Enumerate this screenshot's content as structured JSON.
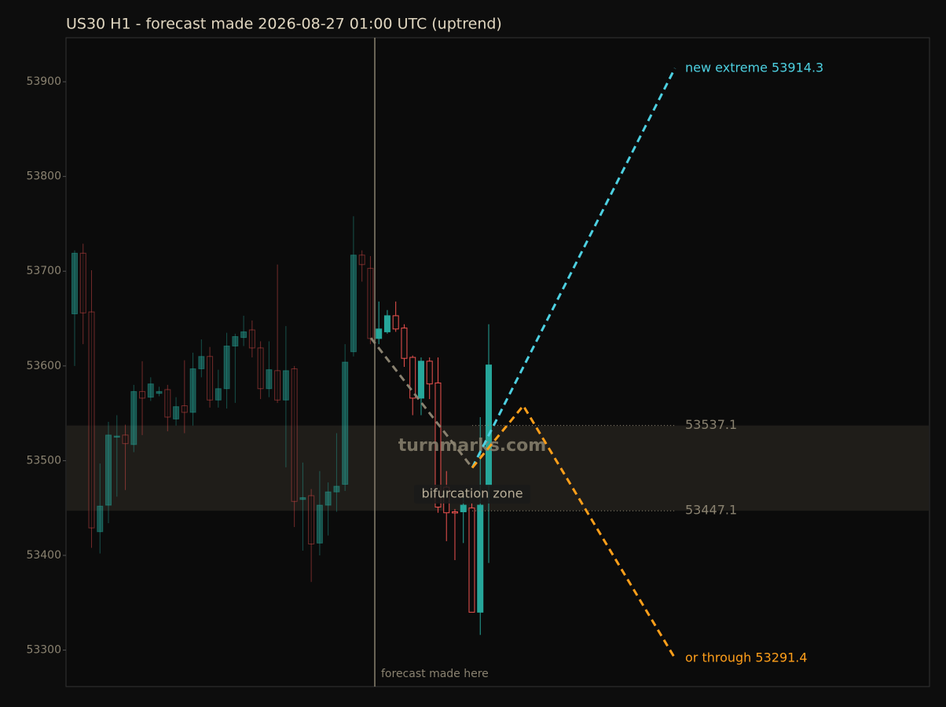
{
  "chart_data": {
    "type": "candlestick",
    "title": "US30 H1 - forecast made 2026-08-27 01:00 UTC (uptrend)",
    "ylim": [
      53261.5,
      53946.5
    ],
    "yticks": [
      53300,
      53400,
      53500,
      53600,
      53700,
      53800,
      53900
    ],
    "up_color": "#26a69a",
    "down_color": "#ef5350",
    "open": [
      53655,
      53719,
      53657,
      53425,
      53453,
      53525,
      53527,
      53517,
      53573,
      53567,
      53571,
      53575,
      53544,
      53558,
      53551,
      53597,
      53610,
      53564,
      53576,
      53621,
      53630,
      53638,
      53619,
      53576,
      53595,
      53564,
      53597,
      53459,
      53463,
      53413,
      53453,
      53467,
      53475,
      53615,
      53717,
      53703,
      53629,
      53636,
      53653,
      53640,
      53609,
      53566,
      53605,
      53582,
      53472,
      53446,
      53446,
      53450,
      53340,
      53474
    ],
    "high": [
      53722,
      53729,
      53701,
      53497,
      53541,
      53548,
      53538,
      53580,
      53605,
      53588,
      53578,
      53580,
      53567,
      53606,
      53614,
      53628,
      53620,
      53596,
      53635,
      53634,
      53653,
      53648,
      53626,
      53626,
      53707,
      53642,
      53600,
      53498,
      53470,
      53489,
      53477,
      53529,
      53623,
      53758,
      53722,
      53716,
      53668,
      53659,
      53668,
      53644,
      53611,
      53609,
      53609,
      53609,
      53489,
      53449,
      53463,
      53455,
      53546,
      53644
    ],
    "low": [
      53600,
      53623,
      53408,
      53402,
      53434,
      53462,
      53469,
      53509,
      53527,
      53563,
      53568,
      53531,
      53537,
      53529,
      53537,
      53588,
      53556,
      53556,
      53555,
      53561,
      53621,
      53609,
      53565,
      53567,
      53561,
      53493,
      53430,
      53405,
      53372,
      53400,
      53421,
      53446,
      53468,
      53610,
      53689,
      53623,
      53623,
      53634,
      53636,
      53599,
      53548,
      53548,
      53565,
      53445,
      53415,
      53395,
      53413,
      53340,
      53316,
      53392
    ],
    "close": [
      53719,
      53656,
      53429,
      53452,
      53527,
      53526,
      53518,
      53573,
      53566,
      53581,
      53573,
      53546,
      53557,
      53551,
      53597,
      53610,
      53564,
      53576,
      53621,
      53631,
      53636,
      53619,
      53576,
      53596,
      53564,
      53595,
      53457,
      53461,
      53412,
      53453,
      53467,
      53473,
      53604,
      53717,
      53707,
      53629,
      53639,
      53653,
      53639,
      53608,
      53566,
      53605,
      53581,
      53451,
      53445,
      53445,
      53453,
      53340,
      53453,
      53601
    ],
    "levels": [
      53537.1,
      53447.1
    ],
    "zone_label": "bifurcation zone",
    "watermark": "turnmarks.com",
    "forecast_label": "forecast made here",
    "projections": [
      {
        "color": "#8a8270",
        "values": [
          53629.5,
          53492.5
        ]
      },
      {
        "color": "#4dd0e1",
        "values": [
          53492.5,
          53914.3
        ],
        "label": "new extreme 53914.3"
      },
      {
        "color": "#ff9f1a",
        "values": [
          53492.5,
          53558,
          53291.4
        ],
        "label": "or through 53291.4"
      }
    ]
  }
}
